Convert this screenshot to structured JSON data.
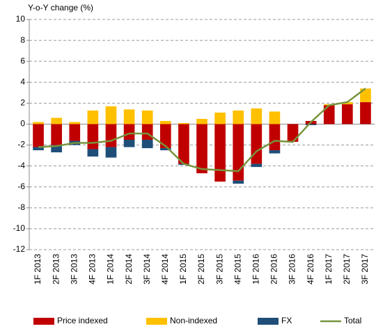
{
  "chart_data": {
    "type": "bar",
    "stacked": true,
    "y_label": "Y-o-Y change (%)",
    "categories": [
      "1F 2013",
      "2F 2013",
      "3F 2013",
      "4F 2013",
      "1F 2014",
      "2F 2014",
      "3F 2014",
      "4F 2014",
      "1F 2015",
      "2F 2015",
      "3F 2015",
      "4F 2015",
      "1F 2016",
      "2F 2016",
      "3F 2016",
      "4F 2016",
      "1F 2017",
      "2F 2017",
      "3F 2017"
    ],
    "series": [
      {
        "name": "Price indexed",
        "color": "#c00000",
        "values": [
          -2.2,
          -2.0,
          -1.6,
          -2.4,
          -2.2,
          -1.5,
          -1.5,
          -2.3,
          -3.8,
          -4.7,
          -5.5,
          -5.4,
          -3.8,
          -2.5,
          -1.7,
          0.3,
          1.8,
          1.9,
          2.1
        ]
      },
      {
        "name": "Non-indexed",
        "color": "#ffc000",
        "values": [
          0.2,
          0.6,
          0.2,
          1.3,
          1.7,
          1.4,
          1.3,
          0.3,
          0.1,
          0.5,
          1.1,
          1.3,
          1.5,
          1.2,
          0,
          0,
          0.1,
          0.2,
          1.3
        ]
      },
      {
        "name": "FX",
        "color": "#1f4e79",
        "values": [
          -0.3,
          -0.7,
          -0.4,
          -0.7,
          -1.0,
          -0.7,
          -0.8,
          -0.2,
          -0.1,
          0,
          0,
          -0.3,
          -0.3,
          -0.3,
          0,
          -0.1,
          0,
          0,
          0
        ]
      },
      {
        "name": "Total",
        "color": "#77933c",
        "type": "line",
        "values": [
          -2.2,
          -2.1,
          -1.8,
          -1.8,
          -1.6,
          -0.9,
          -0.9,
          -2.1,
          -3.8,
          -4.3,
          -4.4,
          -4.5,
          -2.6,
          -1.6,
          -1.7,
          0.2,
          1.8,
          2.1,
          3.4
        ]
      }
    ],
    "ylim": [
      -12,
      10
    ],
    "yticks": [
      -12,
      -10,
      -8,
      -6,
      -4,
      -2,
      0,
      2,
      4,
      6,
      8,
      10
    ],
    "grid": true
  }
}
